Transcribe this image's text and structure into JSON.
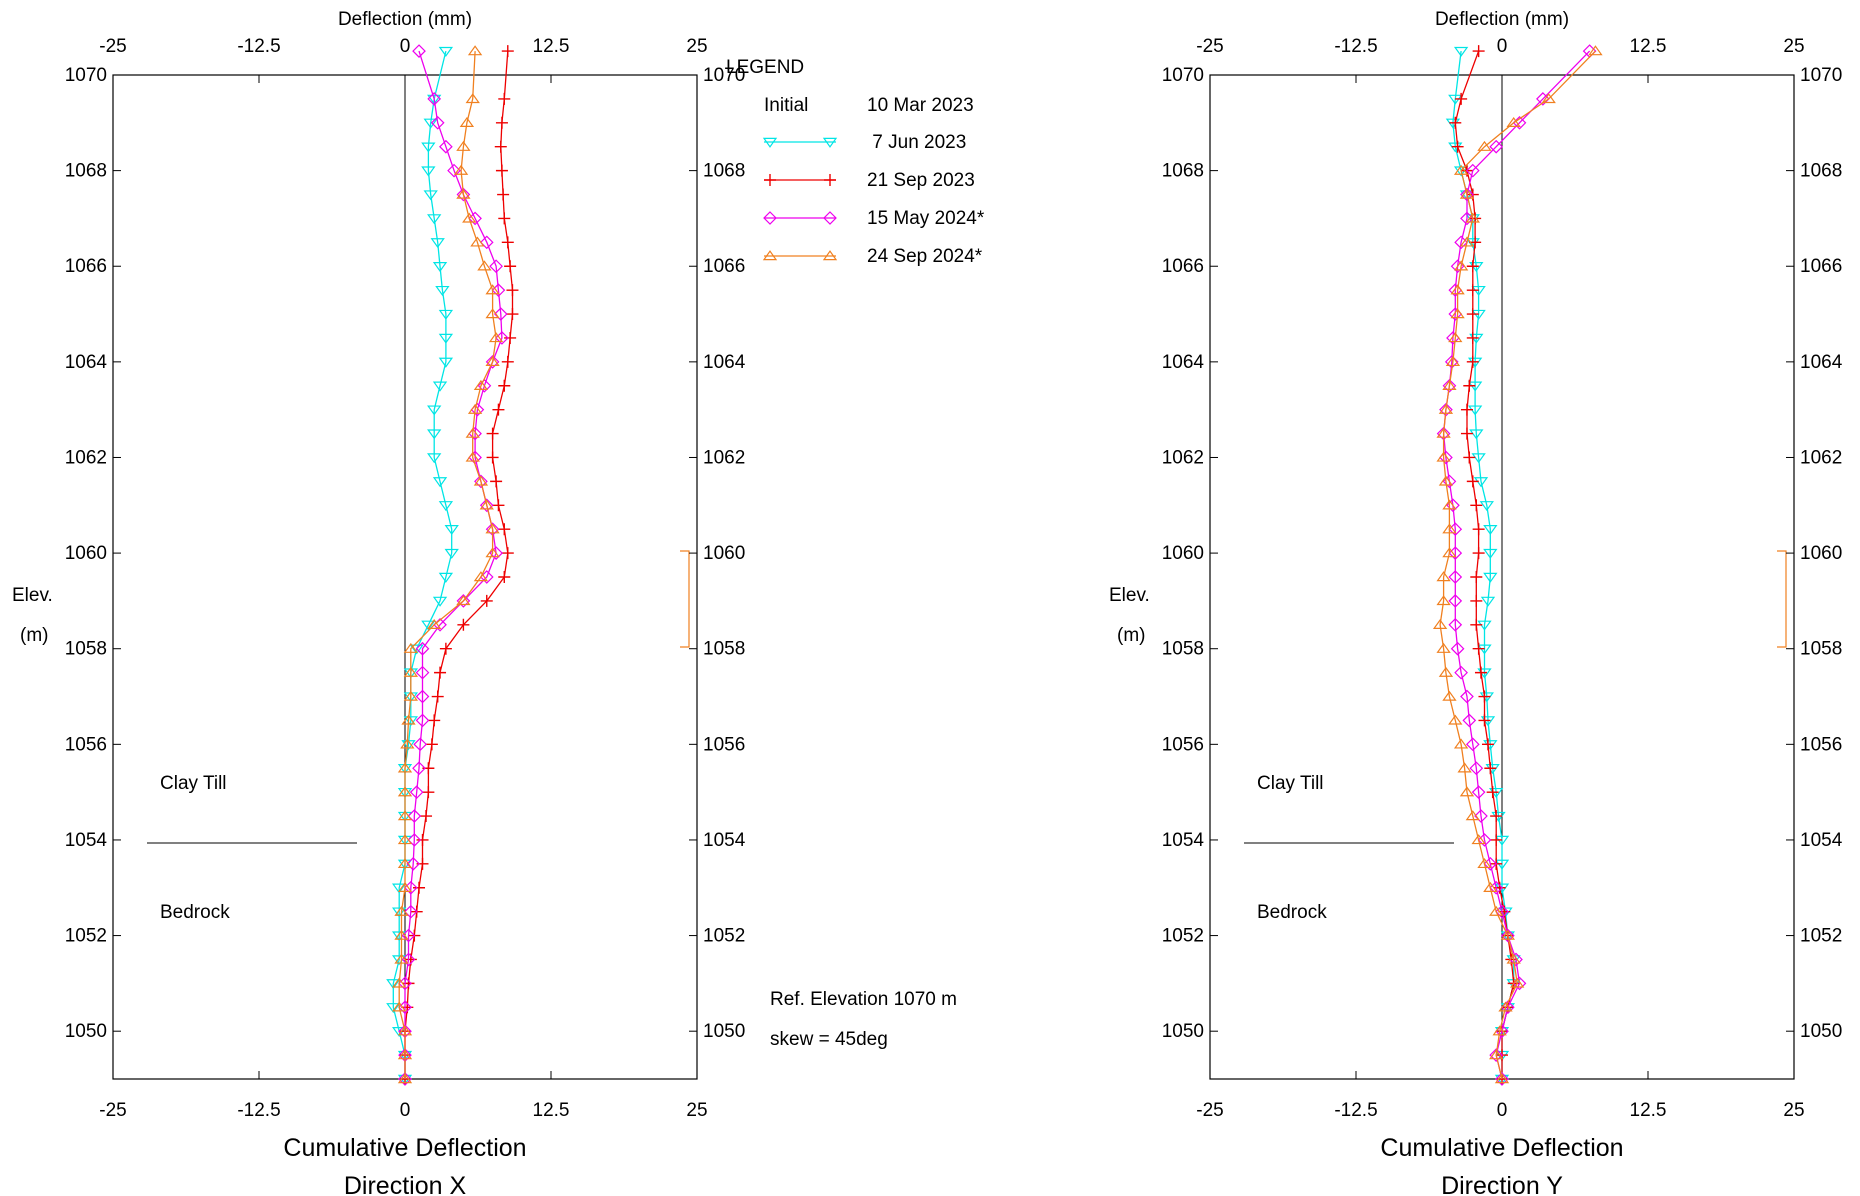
{
  "chart_data": [
    {
      "type": "line",
      "title": "Cumulative Deflection",
      "subtitle": "Direction  X",
      "top_axis_label": "Deflection (mm)",
      "ylabel_line1": "Elev.",
      "ylabel_line2": "(m)",
      "xlim": [
        -25,
        25
      ],
      "ylim": [
        1049,
        1070
      ],
      "x_ticks": [
        "-25",
        "-12.5",
        "0",
        "12.5",
        "25"
      ],
      "y_ticks": [
        "1070",
        "1068",
        "1066",
        "1064",
        "1062",
        "1060",
        "1058",
        "1056",
        "1054",
        "1052",
        "1050"
      ],
      "grid": false,
      "elevations": [
        1069.5,
        1069,
        1068.5,
        1068,
        1067.5,
        1067,
        1066.5,
        1066,
        1065.5,
        1065,
        1064.5,
        1064,
        1063.5,
        1063,
        1062.5,
        1062,
        1061.5,
        1061,
        1060.5,
        1060,
        1059.5,
        1059,
        1058.5,
        1058,
        1057.5,
        1057,
        1056.5,
        1056,
        1055.5,
        1055,
        1054.5,
        1054,
        1053.5,
        1053,
        1052.5,
        1052,
        1051.5,
        1051,
        1050.5,
        1050,
        1049.5,
        1049
      ],
      "series": [
        {
          "name": "7 Jun 2023",
          "color": "#00e5e5",
          "marker": "tri-down",
          "top": [
            3.5,
            1070.5
          ],
          "values": [
            2.5,
            2.2,
            2,
            2,
            2.2,
            2.5,
            2.8,
            3,
            3.2,
            3.5,
            3.5,
            3.5,
            3,
            2.5,
            2.5,
            2.5,
            3,
            3.5,
            4,
            4,
            3.5,
            3,
            2,
            1,
            0.5,
            0.5,
            0.5,
            0.3,
            0,
            0,
            0,
            0,
            0,
            -0.5,
            -0.5,
            -0.5,
            -0.5,
            -1,
            -1,
            -0.5,
            0,
            0
          ]
        },
        {
          "name": "21 Sep 2023",
          "color": "#ee0000",
          "marker": "plus",
          "top": [
            8.8,
            1070.5
          ],
          "values": [
            8.5,
            8.3,
            8.2,
            8.3,
            8.4,
            8.5,
            8.8,
            9,
            9.2,
            9.2,
            9,
            8.8,
            8.5,
            8,
            7.5,
            7.5,
            7.8,
            8,
            8.5,
            8.8,
            8.5,
            7,
            5,
            3.5,
            3,
            2.8,
            2.5,
            2.3,
            2,
            2,
            1.8,
            1.5,
            1.5,
            1.2,
            1,
            0.8,
            0.5,
            0.3,
            0.2,
            0,
            0,
            0
          ]
        },
        {
          "name": "15 May 2024*",
          "color": "#ee00ee",
          "marker": "diamond",
          "top": [
            1.2,
            1070.5
          ],
          "values": [
            2.5,
            2.8,
            3.5,
            4.2,
            5,
            6,
            7,
            7.8,
            8,
            8.2,
            8.3,
            7.5,
            6.8,
            6.2,
            6,
            6,
            6.5,
            7,
            7.5,
            7.8,
            7,
            5,
            3,
            1.5,
            1.5,
            1.5,
            1.5,
            1.3,
            1.2,
            1,
            0.8,
            0.8,
            0.7,
            0.5,
            0.5,
            0.3,
            0.3,
            0,
            0,
            0,
            0,
            0
          ]
        },
        {
          "name": "24 Sep 2024*",
          "color": "#f08020",
          "marker": "tri-up",
          "top": [
            6,
            1070.5
          ],
          "values": [
            5.8,
            5.3,
            5,
            4.8,
            5,
            5.5,
            6.2,
            6.8,
            7.5,
            7.5,
            7.8,
            7.5,
            6.5,
            6,
            5.8,
            5.8,
            6.5,
            7,
            7.5,
            7.5,
            6.5,
            5,
            2.5,
            0.5,
            0.5,
            0.5,
            0.3,
            0.2,
            0,
            0,
            0,
            0,
            0,
            0,
            -0.3,
            -0.3,
            -0.3,
            -0.5,
            -0.5,
            0,
            0,
            0
          ]
        }
      ],
      "layer_labels": [
        "Clay Till",
        "Bedrock"
      ],
      "layer_boundary_elev": 1054,
      "legend_title": "LEGEND",
      "legend_entries": [
        {
          "label": "Initial",
          "date": "10 Mar 2023"
        },
        {
          "label": "",
          "date": " 7 Jun 2023"
        },
        {
          "label": "",
          "date": "21 Sep 2023"
        },
        {
          "label": "",
          "date": "15 May 2024*"
        },
        {
          "label": "",
          "date": "24 Sep 2024*"
        }
      ],
      "ref_elevation_text": "Ref. Elevation 1070 m",
      "skew_text": "skew = 45deg"
    },
    {
      "type": "line",
      "title": "Cumulative Deflection",
      "subtitle": "Direction  Y",
      "top_axis_label": "Deflection (mm)",
      "ylabel_line1": "Elev.",
      "ylabel_line2": "(m)",
      "xlim": [
        -25,
        25
      ],
      "ylim": [
        1049,
        1070
      ],
      "x_ticks": [
        "-25",
        "-12.5",
        "0",
        "12.5",
        "25"
      ],
      "y_ticks": [
        "1070",
        "1068",
        "1066",
        "1064",
        "1062",
        "1060",
        "1058",
        "1056",
        "1054",
        "1052",
        "1050"
      ],
      "grid": false,
      "elevations": [
        1069.5,
        1069,
        1068.5,
        1068,
        1067.5,
        1067,
        1066.5,
        1066,
        1065.5,
        1065,
        1064.5,
        1064,
        1063.5,
        1063,
        1062.5,
        1062,
        1061.5,
        1061,
        1060.5,
        1060,
        1059.5,
        1059,
        1058.5,
        1058,
        1057.5,
        1057,
        1056.5,
        1056,
        1055.5,
        1055,
        1054.5,
        1054,
        1053.5,
        1053,
        1052.5,
        1052,
        1051.5,
        1051,
        1050.5,
        1050,
        1049.5,
        1049
      ],
      "series": [
        {
          "name": "7 Jun 2023",
          "color": "#00e5e5",
          "marker": "tri-down",
          "top": [
            -3.5,
            1070.5
          ],
          "values": [
            -4,
            -4.2,
            -4,
            -3.5,
            -3,
            -2.5,
            -2.5,
            -2.2,
            -2,
            -2,
            -2.2,
            -2.3,
            -2.3,
            -2.3,
            -2.2,
            -2,
            -1.8,
            -1.3,
            -1,
            -1,
            -1,
            -1.2,
            -1.5,
            -1.5,
            -1.5,
            -1.3,
            -1.2,
            -1,
            -0.8,
            -0.5,
            -0.3,
            0,
            0,
            0,
            0.3,
            0.5,
            1,
            1,
            0.5,
            0,
            0,
            0
          ]
        },
        {
          "name": "21 Sep 2023",
          "color": "#ee0000",
          "marker": "plus",
          "top": [
            -2,
            1070.5
          ],
          "values": [
            -3.5,
            -4,
            -3.8,
            -3,
            -2.5,
            -2.3,
            -2.3,
            -2.5,
            -2.5,
            -2.5,
            -2.5,
            -2.5,
            -2.8,
            -3,
            -3,
            -2.8,
            -2.5,
            -2.2,
            -2,
            -2,
            -2.2,
            -2.2,
            -2.2,
            -2,
            -1.8,
            -1.5,
            -1.5,
            -1.2,
            -1,
            -0.8,
            -0.5,
            -0.5,
            -0.5,
            -0.2,
            0.2,
            0.5,
            0.8,
            1,
            0.5,
            0,
            0,
            0
          ]
        },
        {
          "name": "15 May 2024*",
          "color": "#ee00ee",
          "marker": "diamond",
          "top": [
            7.5,
            1070.5
          ],
          "values": [
            3.5,
            1.5,
            -0.5,
            -2.5,
            -3,
            -3,
            -3.5,
            -3.8,
            -4,
            -4,
            -4.2,
            -4.3,
            -4.5,
            -4.8,
            -5,
            -4.8,
            -4.5,
            -4.2,
            -4,
            -4,
            -4,
            -4,
            -4,
            -3.8,
            -3.5,
            -3,
            -2.8,
            -2.5,
            -2.2,
            -2,
            -1.8,
            -1.5,
            -1,
            -0.5,
            0,
            0.5,
            1.2,
            1.5,
            0.5,
            0,
            -0.5,
            0
          ]
        },
        {
          "name": "24 Sep 2024*",
          "color": "#f08020",
          "marker": "tri-up",
          "top": [
            8,
            1070.5
          ],
          "values": [
            4,
            1,
            -1.5,
            -3.5,
            -3,
            -2.5,
            -3,
            -3.5,
            -3.8,
            -3.8,
            -4,
            -4.2,
            -4.5,
            -4.8,
            -5,
            -5,
            -4.8,
            -4.5,
            -4.5,
            -4.5,
            -5,
            -5,
            -5.3,
            -5,
            -4.8,
            -4.5,
            -4,
            -3.5,
            -3.2,
            -3,
            -2.5,
            -2,
            -1.5,
            -1,
            -0.5,
            0.5,
            1,
            1.3,
            0.3,
            -0.2,
            -0.5,
            0
          ]
        }
      ],
      "layer_labels": [
        "Clay Till",
        "Bedrock"
      ],
      "layer_boundary_elev": 1054
    }
  ]
}
